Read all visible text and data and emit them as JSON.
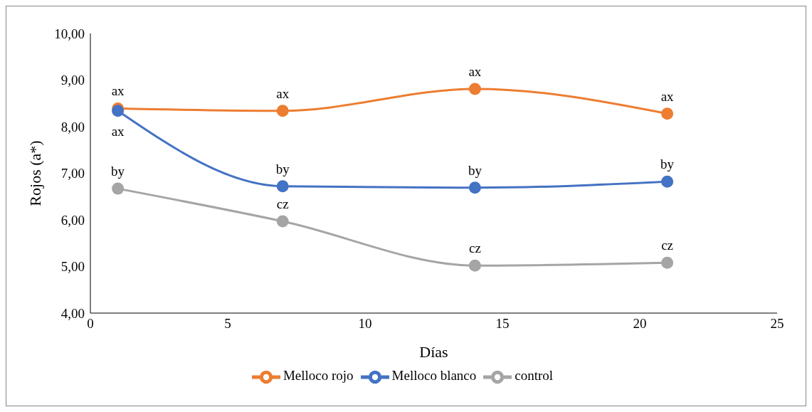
{
  "chart_data": {
    "type": "line",
    "xlabel": "Días",
    "ylabel": "Rojos (a*)",
    "x": [
      1,
      7,
      14,
      21
    ],
    "series": [
      {
        "name": "control",
        "color": "#a5a5a5",
        "values": [
          6.67,
          5.97,
          5.02,
          5.08
        ]
      },
      {
        "name": "Melloco blanco",
        "color": "#4472c4",
        "values": [
          8.34,
          6.72,
          6.69,
          6.82
        ]
      },
      {
        "name": "Melloco rojo",
        "color": "#ed7d31",
        "values": [
          8.39,
          8.34,
          8.81,
          8.28
        ]
      }
    ],
    "xlim": [
      0,
      25
    ],
    "xticks": [
      0,
      5,
      10,
      15,
      20,
      25
    ],
    "ylim": [
      4,
      10
    ],
    "yticks": [
      {
        "value": 4,
        "label": "4,00"
      },
      {
        "value": 5,
        "label": "5,00"
      },
      {
        "value": 6,
        "label": "6,00"
      },
      {
        "value": 7,
        "label": "7,00"
      },
      {
        "value": 8,
        "label": "8,00"
      },
      {
        "value": 9,
        "label": "9,00"
      },
      {
        "value": 10,
        "label": "10,00"
      }
    ],
    "annotations": [
      {
        "text": "by",
        "x": 1,
        "y": 6.67
      },
      {
        "text": "cz",
        "x": 7,
        "y": 5.97
      },
      {
        "text": "cz",
        "x": 14,
        "y": 5.02
      },
      {
        "text": "cz",
        "x": 21,
        "y": 5.08
      },
      {
        "text": "ax",
        "x": 1,
        "y": 8.34
      },
      {
        "text": "by",
        "x": 7,
        "y": 6.72
      },
      {
        "text": "by",
        "x": 14,
        "y": 6.69
      },
      {
        "text": "by",
        "x": 21,
        "y": 6.82
      },
      {
        "text": "ax",
        "x": 1,
        "y": 8.39
      },
      {
        "text": "ax",
        "x": 7,
        "y": 8.34
      },
      {
        "text": "ax",
        "x": 14,
        "y": 8.81
      },
      {
        "text": "ax",
        "x": 21,
        "y": 8.28
      }
    ],
    "grid": false,
    "legend": "bottom",
    "marker": "circle",
    "line_style": "solid"
  }
}
